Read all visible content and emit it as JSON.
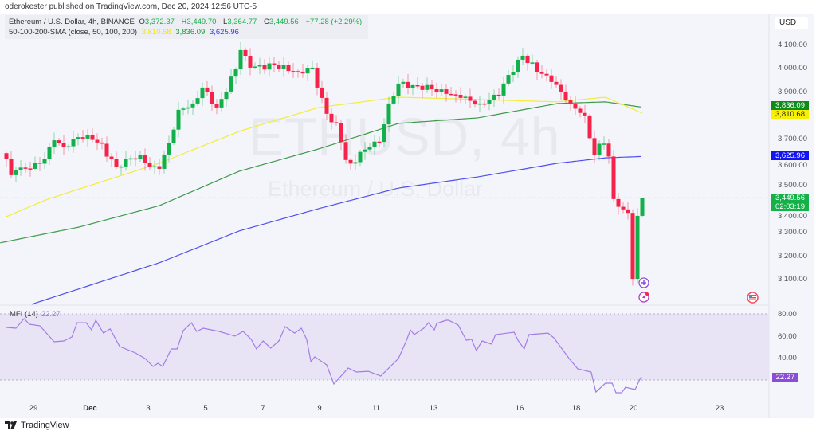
{
  "published": "oderokester published on TradingView.com, Dec 20, 2024 12:56 UTC-5",
  "header": {
    "symbol": "Ethereum / U.S. Dollar, 4h, BINANCE",
    "o_label": "O",
    "o": "3,372.37",
    "h_label": "H",
    "h": "3,449.70",
    "l_label": "L",
    "l": "3,364.77",
    "c_label": "C",
    "c": "3,449.56",
    "change": "+77.28 (+2.29%)",
    "sma_label": "50-100-200-SMA (close, 50, 100, 200)",
    "sma50": "3,810.68",
    "sma100": "3,836.09",
    "sma200": "3,625.96"
  },
  "watermark": {
    "ticker": "ETHUSD, 4h",
    "name": "Ethereum / U.S. Dollar"
  },
  "currency": "USD",
  "price_labels": [
    "4,100.00",
    "4,000.00",
    "3,900.00",
    "3,700.00",
    "3,600.00",
    "3,500.00",
    "3,400.00",
    "3,300.00",
    "3,200.00",
    "3,100.00"
  ],
  "price_tags": {
    "sma100": "3,836.09",
    "sma50": "3,810.68",
    "sma200": "3,625.96",
    "last": "3,449.56",
    "countdown": "02:03:19"
  },
  "mfi": {
    "label": "MFI (14)",
    "value": "22.27",
    "axis": [
      "80.00",
      "60.00",
      "40.00"
    ],
    "tag": "22.27"
  },
  "x_labels": [
    "29",
    "Dec",
    "3",
    "5",
    "7",
    "9",
    "11",
    "13",
    "16",
    "18",
    "20",
    "23"
  ],
  "logo": "TradingView",
  "colors": {
    "up": "#12b04a",
    "down": "#f5234a",
    "sma50": "#f2ec3a",
    "sma100": "#3d9a4a",
    "sma200": "#5050ee",
    "mfi": "#a27ce6"
  },
  "chart_data": {
    "type": "candlestick",
    "title": "Ethereum / U.S. Dollar, 4h, BINANCE",
    "x_unit": "4h candle index",
    "last_candle": {
      "open": 3372.37,
      "high": 3449.7,
      "low": 3364.77,
      "close": 3449.56
    },
    "close_anchors": [
      [
        0,
        3614
      ],
      [
        1,
        3546
      ],
      [
        2,
        3569
      ],
      [
        5,
        3573
      ],
      [
        8,
        3614
      ],
      [
        10,
        3695
      ],
      [
        12,
        3665
      ],
      [
        14,
        3702
      ],
      [
        17,
        3719
      ],
      [
        19.5,
        3682
      ],
      [
        23,
        3580
      ],
      [
        25,
        3614
      ],
      [
        28,
        3631
      ],
      [
        30.5,
        3573
      ],
      [
        32,
        3573
      ],
      [
        34,
        3682
      ],
      [
        36,
        3825
      ],
      [
        39,
        3852
      ],
      [
        41,
        3920
      ],
      [
        44,
        3835
      ],
      [
        46,
        3903
      ],
      [
        48.5,
        4029
      ],
      [
        49,
        4080
      ],
      [
        51,
        4005
      ],
      [
        56,
        4015
      ],
      [
        61,
        3988
      ],
      [
        64,
        4005
      ],
      [
        65,
        3920
      ],
      [
        67,
        3808
      ],
      [
        69.5,
        3740
      ],
      [
        71.5,
        3569
      ],
      [
        73.5,
        3631
      ],
      [
        76,
        3665
      ],
      [
        78,
        3688
      ],
      [
        80,
        3852
      ],
      [
        82,
        3937
      ],
      [
        85,
        3930
      ],
      [
        89,
        3913
      ],
      [
        92,
        3893
      ],
      [
        95,
        3876
      ],
      [
        99,
        3852
      ],
      [
        103,
        3886
      ],
      [
        104.5,
        3954
      ],
      [
        108,
        4056
      ],
      [
        109.5,
        4022
      ],
      [
        114,
        3944
      ],
      [
        116,
        3903
      ],
      [
        118,
        3852
      ],
      [
        121,
        3801
      ],
      [
        123,
        3631
      ],
      [
        124,
        3680
      ],
      [
        125.5,
        3702
      ],
      [
        127,
        3444
      ],
      [
        129,
        3400
      ],
      [
        130,
        3385
      ],
      [
        131,
        3103
      ],
      [
        132,
        3372.37
      ],
      [
        133,
        3449.56
      ]
    ],
    "sma50": [
      [
        0,
        3369
      ],
      [
        8.7,
        3444
      ],
      [
        32,
        3597
      ],
      [
        48.7,
        3733
      ],
      [
        65.3,
        3835
      ],
      [
        82,
        3879
      ],
      [
        98.7,
        3869
      ],
      [
        115.3,
        3859
      ],
      [
        125.3,
        3879
      ],
      [
        133,
        3810.68
      ]
    ],
    "sma100": [
      [
        -1.3,
        3257
      ],
      [
        15.3,
        3325
      ],
      [
        32,
        3416
      ],
      [
        48.7,
        3563
      ],
      [
        65.3,
        3658
      ],
      [
        82,
        3767
      ],
      [
        98.7,
        3791
      ],
      [
        115.3,
        3852
      ],
      [
        125.3,
        3859
      ],
      [
        133,
        3836.09
      ]
    ],
    "sma200": [
      [
        5.3,
        2995
      ],
      [
        32,
        3172
      ],
      [
        48.7,
        3308
      ],
      [
        65.3,
        3403
      ],
      [
        82,
        3491
      ],
      [
        98.7,
        3539
      ],
      [
        115.3,
        3597
      ],
      [
        125.3,
        3620
      ],
      [
        133,
        3625.96
      ]
    ],
    "mfi": [
      [
        0,
        67.7
      ],
      [
        2,
        67
      ],
      [
        3.7,
        75.7
      ],
      [
        4.8,
        70.6
      ],
      [
        7,
        69.2
      ],
      [
        10,
        54.7
      ],
      [
        12,
        55.4
      ],
      [
        13.7,
        59
      ],
      [
        14.8,
        72
      ],
      [
        16.7,
        72
      ],
      [
        17.8,
        65.5
      ],
      [
        18.7,
        74.2
      ],
      [
        20.3,
        62.6
      ],
      [
        21.7,
        66.3
      ],
      [
        23.7,
        50.4
      ],
      [
        27,
        44.6
      ],
      [
        29,
        39.5
      ],
      [
        30.7,
        32.3
      ],
      [
        31.7,
        35.2
      ],
      [
        32.7,
        32.3
      ],
      [
        34.5,
        48.2
      ],
      [
        35.7,
        48.2
      ],
      [
        37,
        64.8
      ],
      [
        38.7,
        72
      ],
      [
        39.8,
        64.1
      ],
      [
        41.2,
        67
      ],
      [
        44.5,
        64.1
      ],
      [
        47.8,
        59.8
      ],
      [
        49.5,
        64.1
      ],
      [
        51.2,
        56.9
      ],
      [
        52.3,
        48.2
      ],
      [
        53.7,
        55.4
      ],
      [
        55.3,
        48.9
      ],
      [
        57,
        55.4
      ],
      [
        58.3,
        68.4
      ],
      [
        60.3,
        62.6
      ],
      [
        61.7,
        67
      ],
      [
        62.8,
        56.9
      ],
      [
        63.7,
        36.6
      ],
      [
        64.5,
        41
      ],
      [
        67,
        33.7
      ],
      [
        68.5,
        16.4
      ],
      [
        71.5,
        30.8
      ],
      [
        73.2,
        27.2
      ],
      [
        75.7,
        27.9
      ],
      [
        78.3,
        23.6
      ],
      [
        82,
        39.5
      ],
      [
        83.7,
        56.1
      ],
      [
        84.5,
        65.5
      ],
      [
        85.3,
        61.2
      ],
      [
        87.3,
        67
      ],
      [
        88.3,
        72
      ],
      [
        89.5,
        65.5
      ],
      [
        90,
        71.3
      ],
      [
        92,
        74.2
      ],
      [
        92.5,
        74.2
      ],
      [
        94.5,
        69.9
      ],
      [
        96.2,
        56.1
      ],
      [
        97.3,
        56.9
      ],
      [
        98.3,
        46.7
      ],
      [
        99.5,
        55.4
      ],
      [
        101.5,
        52.5
      ],
      [
        102.3,
        61.2
      ],
      [
        106.2,
        63.4
      ],
      [
        107,
        56.1
      ],
      [
        108.3,
        48.2
      ],
      [
        109.3,
        61.2
      ],
      [
        113.3,
        62.6
      ],
      [
        114.5,
        58.3
      ],
      [
        117.7,
        39.5
      ],
      [
        119.5,
        30.1
      ],
      [
        122.3,
        27.2
      ],
      [
        123.3,
        9.1
      ],
      [
        125.3,
        17.1
      ],
      [
        126.7,
        17.1
      ],
      [
        127.5,
        8.4
      ],
      [
        128.7,
        8.4
      ],
      [
        129.5,
        13.5
      ],
      [
        131.5,
        11.3
      ],
      [
        132.5,
        20.7
      ],
      [
        133,
        22.27
      ]
    ],
    "price_range": [
      3050,
      4180
    ],
    "mfi_range": [
      0,
      80
    ],
    "mfi_levels": [
      80,
      50,
      20
    ]
  }
}
